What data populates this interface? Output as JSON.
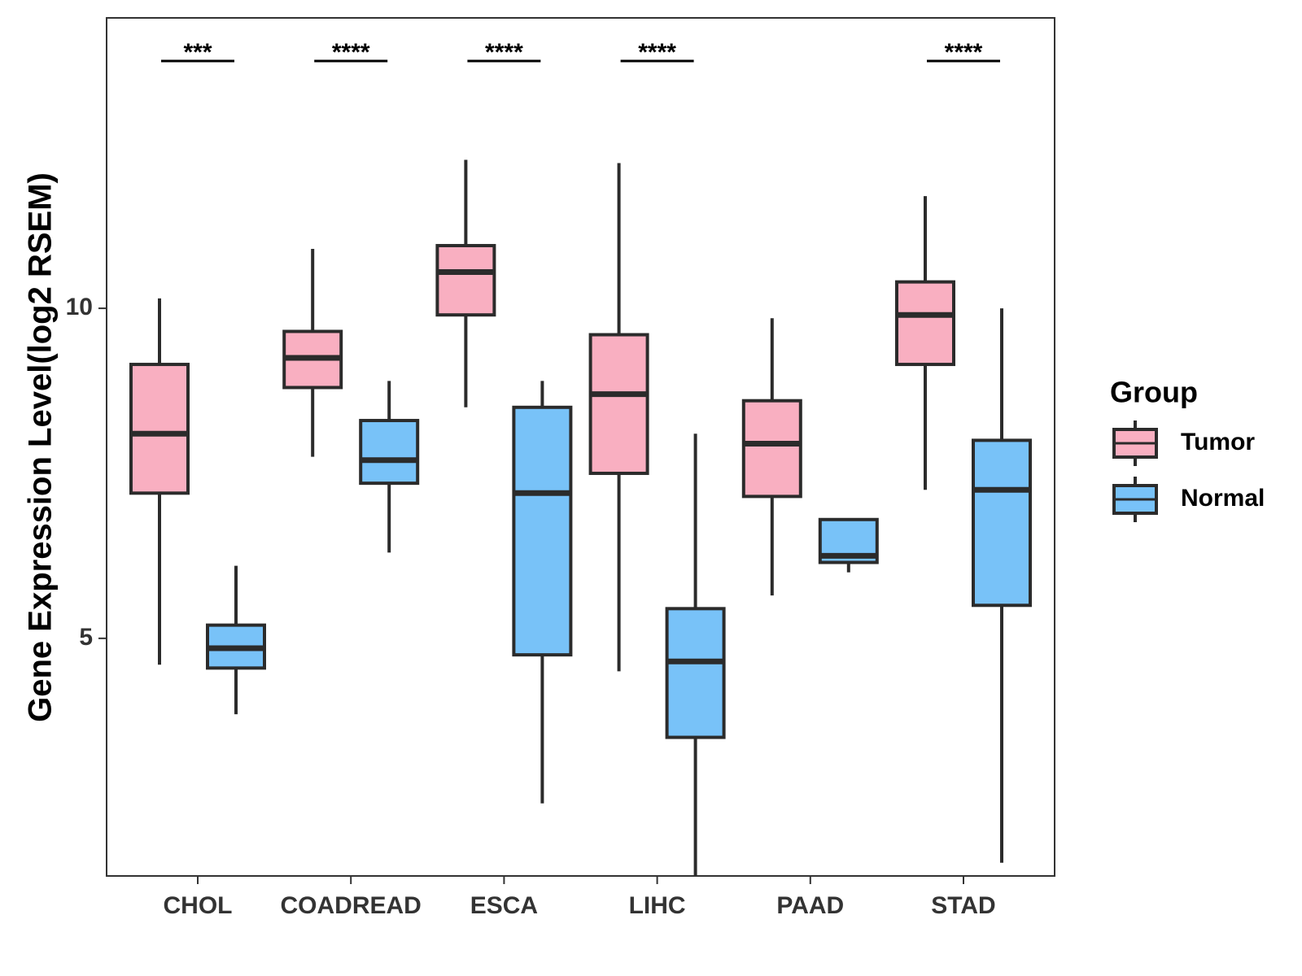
{
  "chart_data": {
    "type": "boxplot",
    "title": "",
    "xlabel": "",
    "ylabel": "Gene Expression Level(log2 RSEM)",
    "ylim": [
      1.4,
      14.4
    ],
    "yticks": [
      5,
      10
    ],
    "grid": false,
    "legend_title": "Group",
    "legend_position": "right",
    "colors": {
      "Tumor": "#F9AFC1",
      "Normal": "#78C2F8",
      "outline": "#2B2B2B"
    },
    "categories": [
      "CHOL",
      "COADREAD",
      "ESCA",
      "LIHC",
      "PAAD",
      "STAD"
    ],
    "series": [
      {
        "name": "Tumor",
        "boxes": [
          {
            "min": 4.6,
            "q1": 7.2,
            "median": 8.1,
            "q3": 9.15,
            "max": 10.15
          },
          {
            "min": 7.75,
            "q1": 8.8,
            "median": 9.25,
            "q3": 9.65,
            "max": 10.9
          },
          {
            "min": 8.5,
            "q1": 9.9,
            "median": 10.55,
            "q3": 10.95,
            "max": 12.25
          },
          {
            "min": 4.5,
            "q1": 7.5,
            "median": 8.7,
            "q3": 9.6,
            "max": 12.2
          },
          {
            "min": 5.65,
            "q1": 7.15,
            "median": 7.95,
            "q3": 8.6,
            "max": 9.85
          },
          {
            "min": 7.25,
            "q1": 9.15,
            "median": 9.9,
            "q3": 10.4,
            "max": 11.7
          }
        ]
      },
      {
        "name": "Normal",
        "boxes": [
          {
            "min": 3.85,
            "q1": 4.55,
            "median": 4.85,
            "q3": 5.2,
            "max": 6.1
          },
          {
            "min": 6.3,
            "q1": 7.35,
            "median": 7.7,
            "q3": 8.3,
            "max": 8.9
          },
          {
            "min": 2.5,
            "q1": 4.75,
            "median": 7.2,
            "q3": 8.5,
            "max": 8.9
          },
          {
            "min": 1.4,
            "q1": 3.5,
            "median": 4.65,
            "q3": 5.45,
            "max": 8.1
          },
          {
            "min": 6.0,
            "q1": 6.15,
            "median": 6.25,
            "q3": 6.8,
            "max": 6.8
          },
          {
            "min": 1.6,
            "q1": 5.5,
            "median": 7.25,
            "q3": 8.0,
            "max": 10.0
          }
        ]
      }
    ],
    "significance": [
      {
        "category": "CHOL",
        "label": "***"
      },
      {
        "category": "COADREAD",
        "label": "****"
      },
      {
        "category": "ESCA",
        "label": "****"
      },
      {
        "category": "LIHC",
        "label": "****"
      },
      {
        "category": "STAD",
        "label": "****"
      }
    ]
  }
}
